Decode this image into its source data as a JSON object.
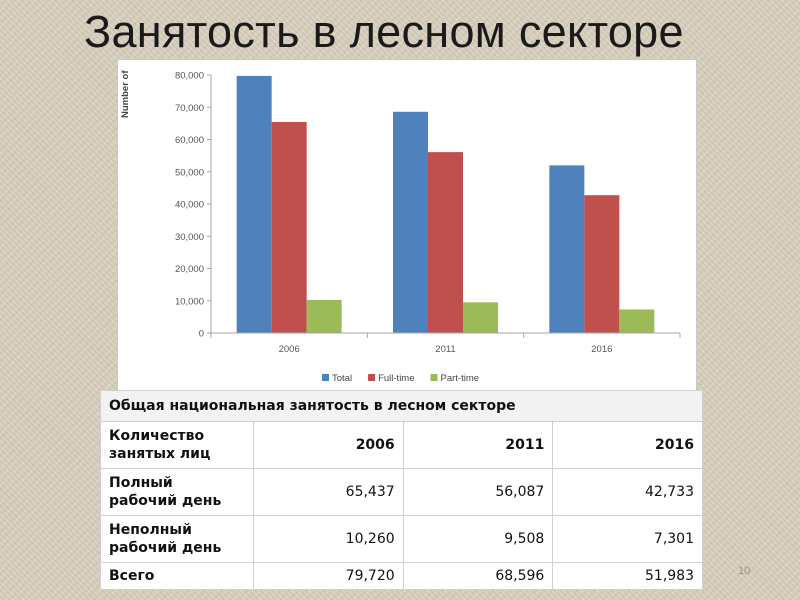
{
  "slide": {
    "title": "Занятость в лесном секторе",
    "page_number": "10"
  },
  "chart_data": {
    "type": "bar",
    "categories": [
      "2006",
      "2011",
      "2016"
    ],
    "series": [
      {
        "name": "Total",
        "color": "#4f81bd",
        "values": [
          79720,
          68596,
          51983
        ]
      },
      {
        "name": "Full-time",
        "color": "#c0504d",
        "values": [
          65437,
          56087,
          42733
        ]
      },
      {
        "name": "Part-time",
        "color": "#9bbb59",
        "values": [
          10260,
          9508,
          7301
        ]
      }
    ],
    "yticks": [
      "0",
      "10,000",
      "20,000",
      "30,000",
      "40,000",
      "50,000",
      "60,000",
      "70,000",
      "80,000"
    ],
    "ylabel": "Number of",
    "ylim": [
      0,
      80000
    ],
    "grid": false,
    "legend_position": "bottom"
  },
  "table": {
    "caption": "Общая национальная занятость в лесном секторе",
    "header": {
      "label": "Количество занятых лиц",
      "years": [
        "2006",
        "2011",
        "2016"
      ]
    },
    "rows": [
      {
        "label": "Полный рабочий день",
        "values": [
          "65,437",
          "56,087",
          "42,733"
        ]
      },
      {
        "label": "Неполный рабочий день",
        "values": [
          "10,260",
          "9,508",
          "7,301"
        ]
      },
      {
        "label": "Всего",
        "values": [
          "79,720",
          "68,596",
          "51,983"
        ]
      }
    ]
  }
}
